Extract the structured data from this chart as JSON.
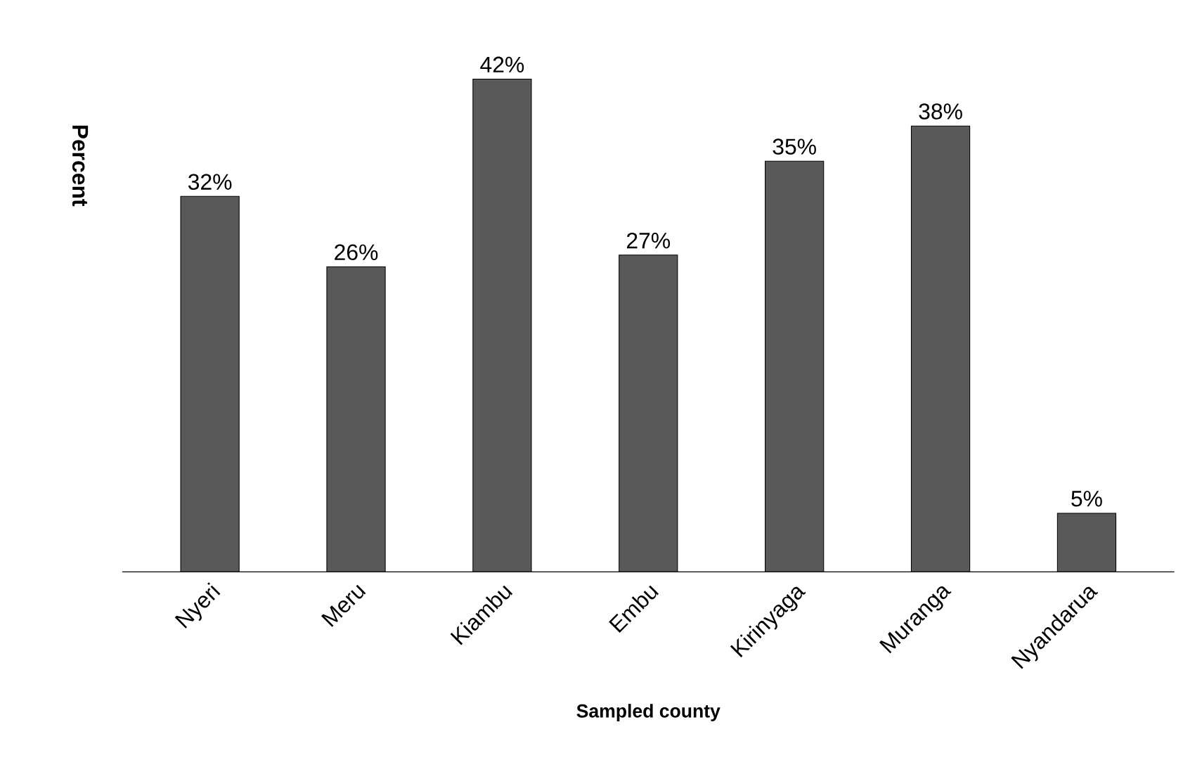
{
  "chart_data": {
    "type": "bar",
    "xlabel": "Sampled county",
    "ylabel": "Percent",
    "categories": [
      "Nyeri",
      "Meru",
      "Kiambu",
      "Embu",
      "Kirinyaga",
      "Muranga",
      "Nyandarua"
    ],
    "values": [
      32,
      26,
      42,
      27,
      35,
      38,
      5
    ],
    "value_labels": [
      "32%",
      "26%",
      "42%",
      "27%",
      "35%",
      "38%",
      "5%"
    ],
    "color": "#595959"
  }
}
